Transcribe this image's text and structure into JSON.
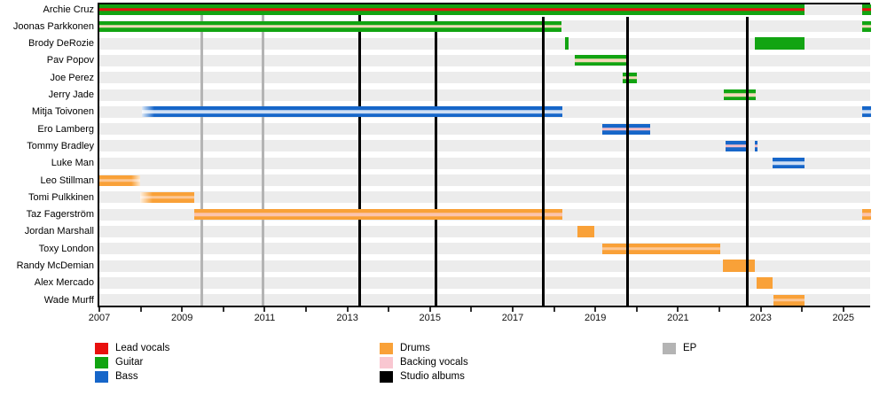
{
  "chart_data": {
    "type": "gantt",
    "description": "Band membership timeline: horizontal bars per member by instrument color, vertical lines mark studio albums (black) and EPs (gray).",
    "x_axis": {
      "start_year": 2007,
      "end_year": 2025.66,
      "tick_years": [
        2007,
        2008,
        2009,
        2010,
        2011,
        2012,
        2013,
        2014,
        2015,
        2016,
        2017,
        2018,
        2019,
        2020,
        2021,
        2022,
        2023,
        2024,
        2025
      ],
      "labeled_years": [
        "2007",
        "2009",
        "2011",
        "2013",
        "2015",
        "2017",
        "2019",
        "2021",
        "2023",
        "2025"
      ]
    },
    "colors": {
      "lead_vocals": "#e8100e",
      "guitar": "#12a412",
      "bass": "#1666c9",
      "drums": "#f9a138",
      "backing_vocals": "#f9c7d1",
      "studio_album_line": "#000000",
      "ep_line": "#b4b4b4",
      "row_band": "#ececec",
      "center_cream": "#f2d9b9",
      "center_lightblue": "#cfdff4",
      "center_pink": "#f4bec7",
      "center_lightorange": "#fcc795",
      "center_peach": "#fbc4ad"
    },
    "members": [
      {
        "name": "Archie Cruz",
        "instrument": "guitar",
        "bars": [
          {
            "from": 2007.0,
            "till": 2024.05,
            "color": "guitar",
            "center": "lead_vocals"
          },
          {
            "from": 2025.46,
            "till": 2025.66,
            "color": "guitar",
            "center": "lead_vocals"
          }
        ]
      },
      {
        "name": "Joonas Parkkonen",
        "instrument": "guitar",
        "bars": [
          {
            "from": 2007.0,
            "till": 2018.17,
            "color": "guitar",
            "center": "center_cream"
          },
          {
            "from": 2025.46,
            "till": 2025.66,
            "color": "guitar",
            "center": "center_cream"
          }
        ]
      },
      {
        "name": "Brody DeRozie",
        "instrument": "guitar",
        "bars": [
          {
            "from": 2018.26,
            "till": 2018.36,
            "color": "guitar",
            "solid": true
          },
          {
            "from": 2022.85,
            "till": 2024.05,
            "color": "guitar",
            "solid": true
          }
        ]
      },
      {
        "name": "Pav Popov",
        "instrument": "guitar",
        "bars": [
          {
            "from": 2018.51,
            "till": 2019.74,
            "color": "guitar",
            "center": "center_cream"
          }
        ]
      },
      {
        "name": "Joe Perez",
        "instrument": "guitar",
        "bars": [
          {
            "from": 2019.67,
            "till": 2020.01,
            "color": "guitar",
            "center": "center_cream"
          }
        ]
      },
      {
        "name": "Jerry Jade",
        "instrument": "guitar",
        "bars": [
          {
            "from": 2022.1,
            "till": 2022.89,
            "color": "guitar",
            "center": "center_cream"
          }
        ]
      },
      {
        "name": "Mitja Toivonen",
        "instrument": "bass",
        "bars": [
          {
            "from": 2008.04,
            "till": 2018.21,
            "color": "bass",
            "center": "center_lightblue",
            "fade": "left"
          },
          {
            "from": 2025.46,
            "till": 2025.66,
            "color": "bass",
            "center": "center_lightblue"
          }
        ]
      },
      {
        "name": "Ero Lamberg",
        "instrument": "bass",
        "bars": [
          {
            "from": 2019.16,
            "till": 2020.32,
            "color": "bass",
            "center": "center_pink"
          }
        ]
      },
      {
        "name": "Tommy Bradley",
        "instrument": "bass",
        "bars": [
          {
            "from": 2022.14,
            "till": 2022.68,
            "color": "bass",
            "center": "center_pink"
          },
          {
            "from": 2022.85,
            "till": 2022.92,
            "color": "bass",
            "center": "center_pink"
          }
        ]
      },
      {
        "name": "Luke Man",
        "instrument": "bass",
        "bars": [
          {
            "from": 2023.28,
            "till": 2024.05,
            "color": "bass",
            "center": "center_lightblue"
          }
        ]
      },
      {
        "name": "Leo Stillman",
        "instrument": "drums",
        "bars": [
          {
            "from": 2007.0,
            "till": 2007.98,
            "color": "drums",
            "center": "center_lightorange",
            "fade": "right"
          }
        ]
      },
      {
        "name": "Tomi Pulkkinen",
        "instrument": "drums",
        "bars": [
          {
            "from": 2007.98,
            "till": 2009.29,
            "color": "drums",
            "center": "center_lightorange",
            "fade": "left"
          }
        ]
      },
      {
        "name": "Taz Fagerström",
        "instrument": "drums",
        "bars": [
          {
            "from": 2009.29,
            "till": 2018.21,
            "color": "drums",
            "center": "center_peach"
          },
          {
            "from": 2025.46,
            "till": 2025.66,
            "color": "drums",
            "center": "center_peach"
          }
        ]
      },
      {
        "name": "Jordan Marshall",
        "instrument": "drums",
        "bars": [
          {
            "from": 2018.56,
            "till": 2018.98,
            "color": "drums",
            "solid": true
          }
        ]
      },
      {
        "name": "Toxy London",
        "instrument": "drums",
        "bars": [
          {
            "from": 2019.16,
            "till": 2022.03,
            "color": "drums",
            "center": "center_lightorange"
          }
        ]
      },
      {
        "name": "Randy McDemian",
        "instrument": "drums",
        "bars": [
          {
            "from": 2022.08,
            "till": 2022.85,
            "color": "drums",
            "solid": true
          }
        ]
      },
      {
        "name": "Alex Mercado",
        "instrument": "drums",
        "bars": [
          {
            "from": 2022.91,
            "till": 2023.28,
            "color": "drums",
            "solid": true
          }
        ]
      },
      {
        "name": "Wade Murff",
        "instrument": "drums",
        "bars": [
          {
            "from": 2023.3,
            "till": 2024.05,
            "color": "drums",
            "center": "center_lightorange"
          }
        ]
      }
    ],
    "events": {
      "eps": [
        {
          "year": 2009.48,
          "layer": "back"
        },
        {
          "year": 2010.96,
          "layer": "back"
        }
      ],
      "studio_albums": [
        {
          "year": 2013.3,
          "layer": "back"
        },
        {
          "year": 2015.14,
          "layer": "back"
        },
        {
          "year": 2017.74,
          "layer": "front"
        },
        {
          "year": 2019.78,
          "layer": "front"
        },
        {
          "year": 2022.68,
          "layer": "front"
        }
      ]
    },
    "legend": {
      "columns": [
        {
          "items": [
            {
              "label": "Lead vocals",
              "color": "lead_vocals"
            },
            {
              "label": "Guitar",
              "color": "guitar"
            },
            {
              "label": "Bass",
              "color": "bass"
            }
          ]
        },
        {
          "items": [
            {
              "label": "Drums",
              "color": "drums"
            },
            {
              "label": "Backing vocals",
              "color": "backing_vocals"
            },
            {
              "label": "Studio albums",
              "color": "studio_album_line"
            }
          ]
        },
        {
          "items": [
            {
              "label": "EP",
              "color": "ep_line"
            }
          ]
        }
      ]
    }
  }
}
